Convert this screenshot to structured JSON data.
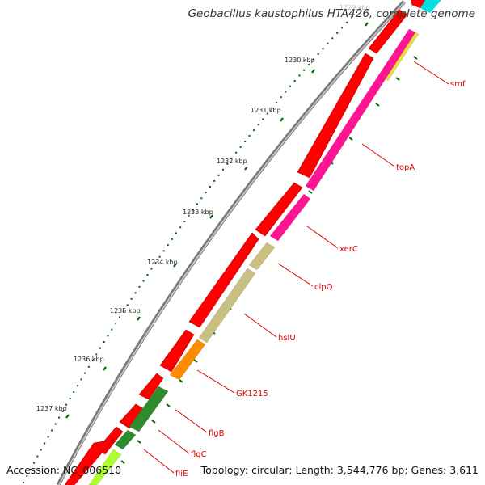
{
  "map": {
    "title": "Geobacillus kaustophilus HTA426, complete genome",
    "accession_label": "Accession: NC_006510",
    "summary_label": "Topology: circular; Length: 3,544,776 bp; Genes: 3,611"
  },
  "scale": {
    "ticks": [
      {
        "label": "1229 kbp",
        "faded": true
      },
      {
        "label": "1230 kbp",
        "faded": false
      },
      {
        "label": "1231 kbp",
        "faded": false
      },
      {
        "label": "1232 kbp",
        "faded": false
      },
      {
        "label": "1233 kbp",
        "faded": false
      },
      {
        "label": "1234 kbp",
        "faded": false
      },
      {
        "label": "1235 kbp",
        "faded": false
      },
      {
        "label": "1236 kbp",
        "faded": false
      },
      {
        "label": "1237 kbp",
        "faded": false
      }
    ]
  },
  "genes": [
    {
      "name": "smf",
      "color": "#e8e040"
    },
    {
      "name": "topA",
      "color": "#ff1493"
    },
    {
      "name": "xerC",
      "color": "#ff1493"
    },
    {
      "name": "clpQ",
      "color": "#c8c080"
    },
    {
      "name": "hslU",
      "color": "#c8c080"
    },
    {
      "name": "GK1215",
      "color": "#ff8c00"
    },
    {
      "name": "flgB",
      "color": "#2e8b2e"
    },
    {
      "name": "flgC",
      "color": "#2e8b2e"
    },
    {
      "name": "fliE",
      "color": "#adff2f"
    }
  ],
  "colors": {
    "cds_outer": "#ff0000",
    "backbone": "#808080",
    "tick": "#006400",
    "label": "#e00000",
    "cyan_feature": "#00e0e0"
  }
}
